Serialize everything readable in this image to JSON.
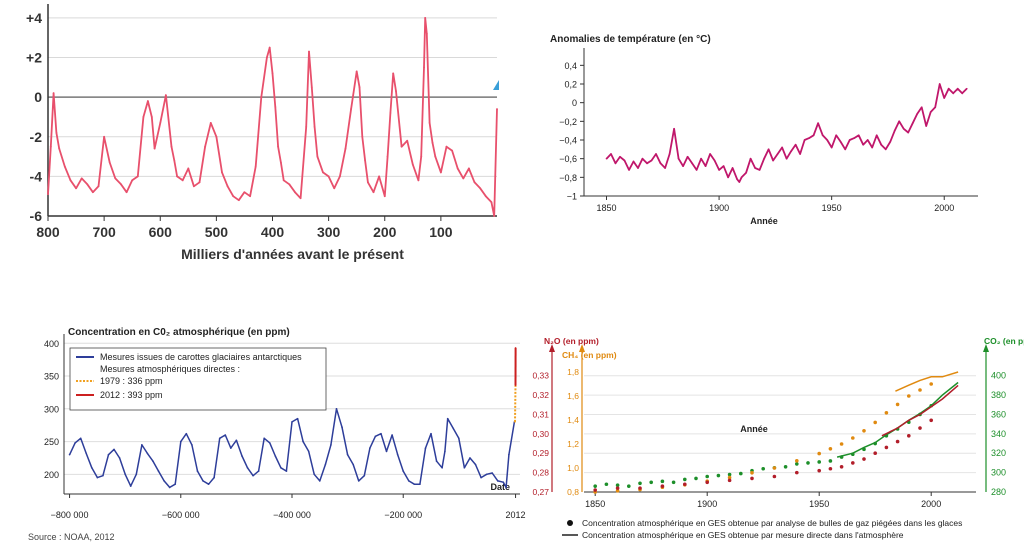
{
  "chart_data": [
    {
      "type": "line",
      "title": "",
      "xlabel": "Milliers d'années avant le présent",
      "ylabel": "",
      "xlim": [
        800,
        0
      ],
      "ylim": [
        -6,
        4.5
      ],
      "x_ticks": [
        "800",
        "700",
        "600",
        "500",
        "400",
        "300",
        "200",
        "100"
      ],
      "x_tick_values": [
        800,
        700,
        600,
        500,
        400,
        300,
        200,
        100
      ],
      "y_ticks": [
        "+4",
        "+2",
        "0",
        "-2",
        "-4",
        "-6"
      ],
      "y_tick_values": [
        4,
        2,
        0,
        -2,
        -4,
        -6
      ],
      "color": "#e8506c",
      "series": [
        {
          "x": [
            800,
            795,
            790,
            785,
            780,
            770,
            760,
            750,
            740,
            730,
            720,
            710,
            700,
            690,
            680,
            670,
            660,
            650,
            640,
            630,
            622,
            615,
            610,
            600,
            590,
            580,
            575,
            570,
            560,
            550,
            540,
            530,
            520,
            510,
            500,
            490,
            480,
            470,
            460,
            450,
            440,
            430,
            420,
            410,
            405,
            400,
            395,
            390,
            385,
            380,
            370,
            360,
            350,
            340,
            335,
            330,
            325,
            320,
            310,
            300,
            290,
            280,
            270,
            260,
            250,
            245,
            240,
            235,
            230,
            220,
            210,
            200,
            195,
            190,
            185,
            180,
            170,
            160,
            150,
            140,
            135,
            130,
            128,
            125,
            120,
            115,
            110,
            100,
            90,
            80,
            70,
            60,
            50,
            40,
            30,
            20,
            10,
            5,
            0
          ],
          "y": [
            -4.9,
            -2.5,
            0.2,
            -1.8,
            -2.6,
            -3.5,
            -4.2,
            -4.6,
            -4.1,
            -4.4,
            -4.8,
            -4.5,
            -2.0,
            -3.3,
            -4.1,
            -4.4,
            -4.8,
            -4.2,
            -4.0,
            -1.0,
            -0.2,
            -1.0,
            -2.6,
            -1.3,
            0.1,
            -2.5,
            -3.2,
            -4.0,
            -4.2,
            -3.6,
            -4.5,
            -4.3,
            -2.5,
            -1.3,
            -2.0,
            -3.8,
            -4.5,
            -5.0,
            -5.2,
            -4.8,
            -5.0,
            -3.5,
            0.0,
            2.0,
            2.5,
            1.2,
            -0.5,
            -2.5,
            -3.3,
            -4.2,
            -4.4,
            -4.8,
            -5.1,
            -1.5,
            2.3,
            0.5,
            -1.5,
            -3.0,
            -3.8,
            -4.0,
            -4.6,
            -4.0,
            -2.6,
            -0.6,
            1.3,
            0.5,
            -2.0,
            -3.2,
            -4.3,
            -4.8,
            -4.0,
            -5.0,
            -3.0,
            -0.8,
            1.2,
            0.3,
            -2.5,
            -2.2,
            -3.4,
            -4.2,
            -3.0,
            1.5,
            4.0,
            3.2,
            -1.3,
            -2.3,
            -3.0,
            -3.8,
            -2.5,
            -2.7,
            -3.6,
            -4.1,
            -3.6,
            -4.3,
            -4.6,
            -5.0,
            -5.3,
            -6.0,
            -0.6
          ]
        }
      ]
    },
    {
      "type": "line",
      "title": "Anomalies de température (en °C)",
      "xlabel": "Année",
      "ylabel": "",
      "xlim": [
        1840,
        2015
      ],
      "ylim": [
        -1.0,
        0.5
      ],
      "x_ticks": [
        "1850",
        "1900",
        "1950",
        "2000"
      ],
      "x_tick_values": [
        1850,
        1900,
        1950,
        2000
      ],
      "y_ticks": [
        "0,4",
        "0,2",
        "0",
        "−0,2",
        "−0,4",
        "−0,6",
        "−0,8",
        "−1"
      ],
      "y_tick_values": [
        0.4,
        0.2,
        0,
        -0.2,
        -0.4,
        -0.6,
        -0.8,
        -1.0
      ],
      "color": "#c0176b",
      "series": [
        {
          "x": [
            1850,
            1852,
            1854,
            1856,
            1858,
            1860,
            1862,
            1864,
            1866,
            1868,
            1870,
            1872,
            1874,
            1876,
            1878,
            1880,
            1882,
            1884,
            1886,
            1888,
            1890,
            1892,
            1894,
            1896,
            1898,
            1900,
            1902,
            1904,
            1906,
            1908,
            1909,
            1910,
            1912,
            1914,
            1916,
            1918,
            1920,
            1922,
            1924,
            1926,
            1928,
            1930,
            1932,
            1934,
            1936,
            1938,
            1940,
            1942,
            1944,
            1946,
            1948,
            1950,
            1952,
            1954,
            1956,
            1958,
            1960,
            1962,
            1964,
            1966,
            1968,
            1970,
            1972,
            1974,
            1976,
            1978,
            1980,
            1982,
            1984,
            1986,
            1988,
            1990,
            1992,
            1994,
            1996,
            1998,
            2000,
            2002,
            2004,
            2006,
            2008,
            2010
          ],
          "y": [
            -0.6,
            -0.55,
            -0.65,
            -0.58,
            -0.62,
            -0.72,
            -0.63,
            -0.7,
            -0.6,
            -0.65,
            -0.62,
            -0.55,
            -0.65,
            -0.7,
            -0.55,
            -0.28,
            -0.6,
            -0.68,
            -0.58,
            -0.65,
            -0.72,
            -0.6,
            -0.68,
            -0.55,
            -0.62,
            -0.72,
            -0.68,
            -0.8,
            -0.7,
            -0.82,
            -0.85,
            -0.8,
            -0.75,
            -0.6,
            -0.7,
            -0.72,
            -0.6,
            -0.5,
            -0.62,
            -0.55,
            -0.48,
            -0.6,
            -0.52,
            -0.45,
            -0.55,
            -0.4,
            -0.38,
            -0.35,
            -0.22,
            -0.35,
            -0.4,
            -0.48,
            -0.35,
            -0.42,
            -0.5,
            -0.4,
            -0.38,
            -0.35,
            -0.45,
            -0.4,
            -0.48,
            -0.35,
            -0.45,
            -0.5,
            -0.42,
            -0.3,
            -0.2,
            -0.28,
            -0.32,
            -0.22,
            -0.12,
            -0.05,
            -0.25,
            -0.1,
            -0.05,
            0.2,
            0.05,
            0.15,
            0.1,
            0.15,
            0.1,
            0.15
          ]
        }
      ]
    },
    {
      "type": "line",
      "title": "Concentration en C0₂ atmosphérique (en ppm)",
      "xlabel": "Date",
      "ylabel": "",
      "xlim": [
        -810000,
        10000
      ],
      "ylim": [
        170,
        405
      ],
      "x_ticks": [
        "−800 000",
        "−600 000",
        "−400 000",
        "−200 000",
        "2012"
      ],
      "x_tick_values": [
        -800000,
        -600000,
        -400000,
        -200000,
        2012
      ],
      "y_ticks": [
        "400",
        "350",
        "300",
        "250",
        "200"
      ],
      "y_tick_values": [
        400,
        350,
        300,
        250,
        200
      ],
      "legend": [
        "Mesures issues de carottes glaciaires antarctiques",
        "Mesures atmosphériques directes :",
        "1979 : 336 ppm",
        "2012 : 393 ppm"
      ],
      "legend_colors": [
        "#2e3e9a",
        "",
        "#f0a020",
        "#cc2020"
      ],
      "source": "Source : NOAA, 2012",
      "series": [
        {
          "name": "Mesures issues de carottes glaciaires antarctiques",
          "color": "#2e3e9a",
          "x": [
            -800000,
            -790000,
            -780000,
            -770000,
            -760000,
            -750000,
            -740000,
            -730000,
            -720000,
            -710000,
            -700000,
            -690000,
            -680000,
            -670000,
            -660000,
            -650000,
            -640000,
            -630000,
            -620000,
            -610000,
            -600000,
            -590000,
            -580000,
            -570000,
            -560000,
            -550000,
            -540000,
            -530000,
            -520000,
            -510000,
            -500000,
            -490000,
            -480000,
            -470000,
            -460000,
            -450000,
            -440000,
            -430000,
            -420000,
            -410000,
            -400000,
            -390000,
            -380000,
            -370000,
            -360000,
            -350000,
            -340000,
            -330000,
            -320000,
            -310000,
            -300000,
            -290000,
            -280000,
            -270000,
            -260000,
            -250000,
            -240000,
            -230000,
            -220000,
            -210000,
            -200000,
            -190000,
            -180000,
            -170000,
            -160000,
            -150000,
            -140000,
            -130000,
            -125000,
            -120000,
            -110000,
            -100000,
            -90000,
            -80000,
            -70000,
            -60000,
            -50000,
            -40000,
            -30000,
            -20000,
            -15000,
            -10000,
            0
          ],
          "y": [
            230,
            248,
            255,
            232,
            210,
            195,
            198,
            230,
            238,
            225,
            200,
            182,
            200,
            245,
            232,
            220,
            205,
            190,
            180,
            185,
            250,
            262,
            245,
            205,
            190,
            185,
            195,
            255,
            260,
            240,
            252,
            228,
            210,
            198,
            205,
            255,
            248,
            228,
            210,
            205,
            280,
            285,
            250,
            235,
            200,
            190,
            215,
            245,
            300,
            272,
            230,
            215,
            190,
            198,
            240,
            258,
            262,
            235,
            260,
            230,
            205,
            190,
            185,
            185,
            240,
            262,
            220,
            210,
            235,
            285,
            270,
            255,
            210,
            225,
            215,
            195,
            200,
            202,
            190,
            188,
            180,
            230,
            280
          ]
        },
        {
          "name": "1979 : 336 ppm",
          "color": "#f0a020",
          "x": [
            1000,
            1979
          ],
          "y": [
            280,
            336
          ]
        },
        {
          "name": "2012 : 393 ppm",
          "color": "#cc2020",
          "x": [
            1979,
            2012
          ],
          "y": [
            336,
            393
          ]
        }
      ]
    },
    {
      "type": "scatter",
      "title": "",
      "xlabel": "Année",
      "ylabel": "",
      "xlim": [
        1845,
        2020
      ],
      "x_ticks": [
        "1850",
        "1900",
        "1950",
        "2000"
      ],
      "x_tick_values": [
        1850,
        1900,
        1950,
        2000
      ],
      "axes": [
        {
          "label": "N₂O (en ppm)",
          "color": "#b21e2a",
          "ylim": [
            0.27,
            0.335
          ],
          "ticks": [
            "0,33",
            "0,32",
            "0,31",
            "0,30",
            "0,29",
            "0,28",
            "0,27"
          ],
          "tick_values": [
            0.33,
            0.32,
            0.31,
            0.3,
            0.29,
            0.28,
            0.27
          ]
        },
        {
          "label": "CH₄ (en ppm)",
          "color": "#e08a10",
          "ylim": [
            0.8,
            1.85
          ],
          "ticks": [
            "1,8",
            "1,6",
            "1,4",
            "1,2",
            "1,0",
            "0,8"
          ],
          "tick_values": [
            1.8,
            1.6,
            1.4,
            1.2,
            1.0,
            0.8
          ]
        },
        {
          "label": "CO₂ (en ppm)",
          "color": "#1d8f2a",
          "ylim": [
            280,
            410
          ],
          "ticks": [
            "400",
            "380",
            "360",
            "340",
            "320",
            "300",
            "280"
          ],
          "tick_values": [
            400,
            380,
            360,
            340,
            320,
            300,
            280
          ]
        }
      ],
      "legend": [
        "Concentration atmosphérique en GES obtenue par analyse de bulles de gaz piégées dans les glaces",
        "Concentration atmosphérique en GES obtenue par mesure directe dans l'atmosphère"
      ],
      "series": [
        {
          "name": "CO₂ (en ppm)",
          "color": "#1d8f2a",
          "axis": 2,
          "points_x": [
            1850,
            1855,
            1860,
            1865,
            1870,
            1875,
            1880,
            1885,
            1890,
            1895,
            1900,
            1905,
            1910,
            1915,
            1920,
            1925,
            1930,
            1935,
            1940,
            1945,
            1950,
            1955,
            1960,
            1965,
            1970,
            1975,
            1980,
            1985,
            1990,
            1995,
            2000
          ],
          "points_y": [
            286,
            288,
            287,
            286,
            289,
            290,
            291,
            290,
            293,
            294,
            296,
            297,
            298,
            299,
            302,
            304,
            305,
            306,
            309,
            310,
            311,
            312,
            316,
            319,
            324,
            330,
            338,
            345,
            352,
            360,
            369
          ],
          "line_x": [
            1958,
            1965,
            1970,
            1975,
            1980,
            1985,
            1990,
            1995,
            2000,
            2005,
            2012
          ],
          "line_y": [
            316,
            320,
            326,
            331,
            339,
            346,
            354,
            361,
            369,
            380,
            393
          ]
        },
        {
          "name": "CH₄ (en ppm)",
          "color": "#e08a10",
          "axis": 1,
          "points_x": [
            1850,
            1860,
            1870,
            1880,
            1890,
            1900,
            1910,
            1920,
            1930,
            1940,
            1950,
            1955,
            1960,
            1965,
            1970,
            1975,
            1980,
            1985,
            1990,
            1995,
            2000
          ],
          "points_y": [
            0.8,
            0.81,
            0.82,
            0.84,
            0.86,
            0.89,
            0.92,
            0.96,
            1.0,
            1.06,
            1.12,
            1.16,
            1.2,
            1.25,
            1.31,
            1.38,
            1.46,
            1.53,
            1.6,
            1.65,
            1.7
          ],
          "line_x": [
            1984,
            1990,
            1995,
            2000,
            2005,
            2012
          ],
          "line_y": [
            1.64,
            1.69,
            1.73,
            1.76,
            1.76,
            1.8
          ]
        },
        {
          "name": "N₂O (en ppm)",
          "color": "#b21e2a",
          "axis": 0,
          "points_x": [
            1850,
            1860,
            1870,
            1880,
            1890,
            1900,
            1910,
            1920,
            1930,
            1940,
            1950,
            1955,
            1960,
            1965,
            1970,
            1975,
            1980,
            1985,
            1990,
            1995,
            2000
          ],
          "points_y": [
            0.271,
            0.272,
            0.272,
            0.273,
            0.274,
            0.275,
            0.276,
            0.277,
            0.278,
            0.28,
            0.281,
            0.282,
            0.283,
            0.285,
            0.287,
            0.29,
            0.293,
            0.296,
            0.299,
            0.303,
            0.307
          ],
          "line_x": [
            1978,
            1985,
            1990,
            1995,
            2000,
            2005,
            2012
          ],
          "line_y": [
            0.299,
            0.303,
            0.307,
            0.31,
            0.314,
            0.318,
            0.325
          ]
        }
      ]
    }
  ]
}
